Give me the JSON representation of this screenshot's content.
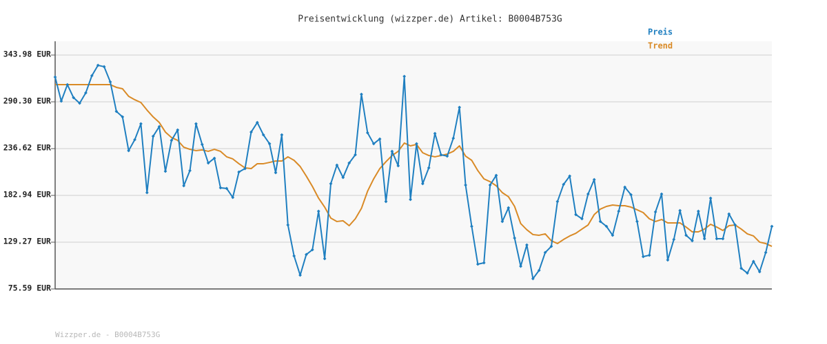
{
  "chart_data": {
    "type": "line",
    "title": "Preisentwicklung (wizzper.de) Artikel: B0004B753G",
    "footer": "Wizzper.de - B0004B753G",
    "ylim": [
      75.59,
      343.98
    ],
    "yticks": [
      {
        "value": 75.59,
        "label": "75.59 EUR"
      },
      {
        "value": 129.27,
        "label": "129.27 EUR"
      },
      {
        "value": 182.94,
        "label": "182.94 EUR"
      },
      {
        "value": 236.62,
        "label": "236.62 EUR"
      },
      {
        "value": 290.3,
        "label": "290.30 EUR"
      },
      {
        "value": 343.98,
        "label": "343.98 EUR"
      }
    ],
    "grid": true,
    "series": [
      {
        "name": "Preis",
        "color": "#1f7fc0",
        "markers": true,
        "values": [
          318.7,
          291.1,
          310.0,
          295.1,
          288.7,
          300.6,
          320.3,
          332.2,
          330.6,
          313.2,
          279.3,
          273.0,
          234.3,
          246.9,
          265.1,
          186.1,
          250.8,
          261.9,
          210.6,
          246.1,
          258.0,
          194.0,
          211.4,
          265.1,
          241.4,
          220.1,
          225.6,
          191.6,
          190.9,
          180.6,
          209.8,
          213.7,
          255.6,
          266.6,
          252.4,
          242.2,
          209.0,
          252.4,
          149.0,
          113.5,
          91.4,
          115.1,
          120.6,
          164.8,
          110.3,
          196.4,
          217.7,
          203.5,
          220.1,
          229.5,
          299.0,
          254.8,
          242.2,
          247.7,
          175.9,
          233.5,
          216.9,
          319.5,
          178.2,
          242.2,
          196.4,
          214.5,
          254.0,
          229.5,
          228.0,
          248.5,
          284.0,
          194.8,
          147.4,
          104.0,
          105.6,
          194.8,
          205.9,
          153.0,
          168.7,
          134.0,
          101.6,
          126.1,
          87.4,
          96.9,
          117.4,
          124.5,
          175.9,
          195.6,
          205.1,
          160.9,
          156.1,
          184.5,
          201.1,
          153.0,
          147.4,
          137.2,
          164.8,
          192.4,
          183.7,
          153.0,
          112.7,
          114.3,
          164.0,
          184.5,
          108.8,
          132.4,
          165.6,
          137.2,
          130.9,
          164.8,
          133.2,
          179.8,
          133.2,
          133.2,
          161.6,
          149.0,
          99.3,
          93.8,
          107.2,
          95.3,
          117.4,
          147.4
        ]
      },
      {
        "name": "Trend",
        "color": "#d98a26",
        "markers": false,
        "values": [
          310.0,
          310.0,
          310.0,
          310.0,
          310.0,
          310.0,
          310.0,
          310.0,
          310.0,
          310.0,
          306.9,
          305.3,
          296.6,
          292.7,
          289.5,
          280.8,
          273.0,
          266.6,
          255.6,
          249.3,
          246.1,
          238.2,
          235.8,
          234.3,
          235.1,
          233.5,
          235.8,
          233.5,
          227.2,
          224.8,
          219.3,
          214.5,
          213.7,
          219.3,
          219.3,
          220.8,
          222.4,
          222.4,
          227.2,
          223.2,
          216.1,
          205.1,
          193.2,
          179.8,
          169.5,
          156.9,
          153.0,
          153.8,
          148.2,
          156.1,
          168.0,
          187.7,
          201.9,
          213.7,
          221.6,
          228.7,
          233.5,
          243.0,
          239.8,
          241.4,
          231.9,
          228.7,
          227.2,
          228.7,
          230.3,
          233.5,
          239.8,
          228.0,
          223.2,
          211.4,
          201.9,
          198.7,
          194.0,
          186.1,
          181.4,
          170.3,
          150.6,
          143.5,
          138.0,
          137.2,
          138.8,
          130.9,
          127.7,
          132.4,
          136.4,
          139.5,
          144.3,
          149.0,
          160.9,
          167.2,
          170.3,
          171.9,
          171.1,
          171.1,
          169.5,
          166.4,
          163.2,
          156.1,
          153.0,
          155.3,
          151.4,
          151.4,
          151.4,
          146.6,
          141.1,
          141.1,
          144.3,
          149.8,
          146.6,
          142.7,
          148.2,
          149.0,
          144.3,
          138.8,
          136.4,
          129.3,
          127.7,
          124.5
        ]
      }
    ]
  }
}
